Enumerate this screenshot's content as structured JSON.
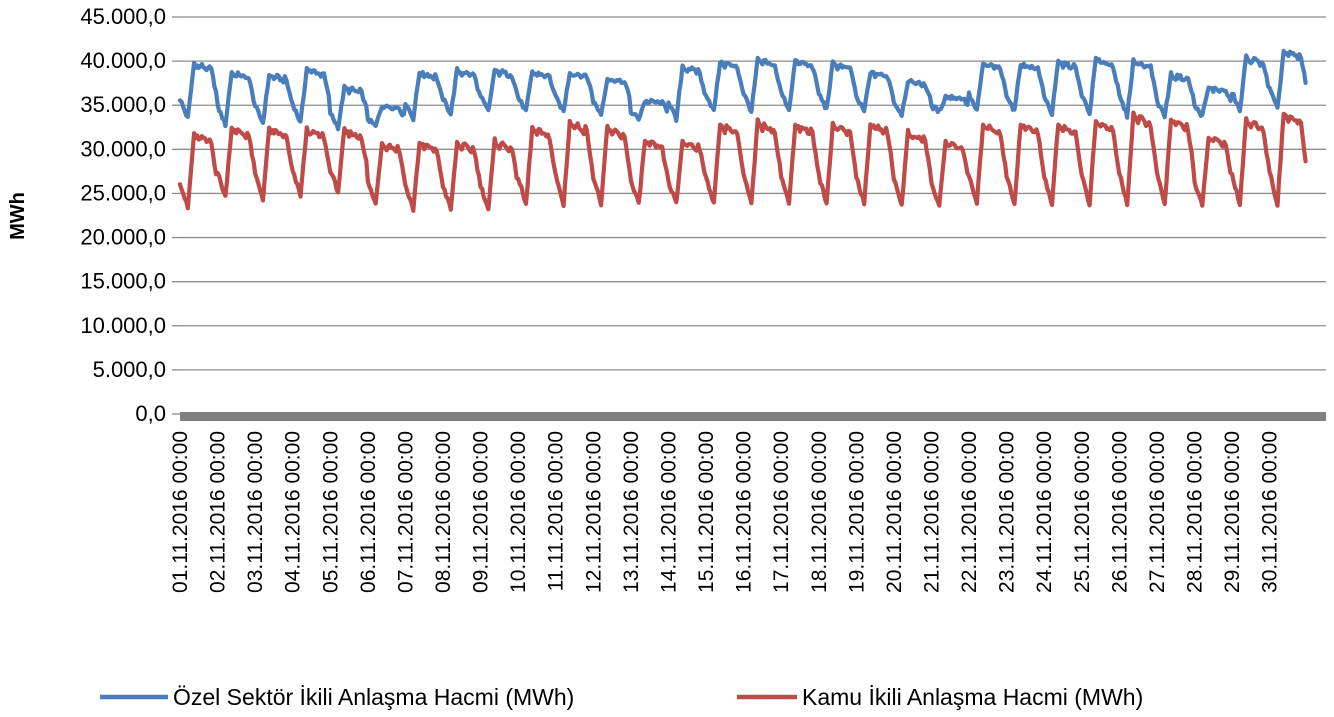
{
  "chart_data": {
    "type": "line",
    "title": "",
    "xlabel": "",
    "ylabel": "MWh",
    "ylim": [
      0,
      45000
    ],
    "yticks": [
      "0,0",
      "5.000,0",
      "10.000,0",
      "15.000,0",
      "20.000,0",
      "25.000,0",
      "30.000,0",
      "35.000,0",
      "40.000,0",
      "45.000,0"
    ],
    "x_tick_labels": [
      "01.11.2016 00:00",
      "02.11.2016 00:00",
      "03.11.2016 00:00",
      "04.11.2016 00:00",
      "05.11.2016 00:00",
      "06.11.2016 00:00",
      "07.11.2016 00:00",
      "08.11.2016 00:00",
      "09.11.2016 00:00",
      "10.11.2016 00:00",
      "11.11.2016 00:00",
      "12.11.2016 00:00",
      "13.11.2016 00:00",
      "14.11.2016 00:00",
      "15.11.2016 00:00",
      "16.11.2016 00:00",
      "17.11.2016 00:00",
      "18.11.2016 00:00",
      "19.11.2016 00:00",
      "20.11.2016 00:00",
      "21.11.2016 00:00",
      "22.11.2016 00:00",
      "23.11.2016 00:00",
      "24.11.2016 00:00",
      "25.11.2016 00:00",
      "26.11.2016 00:00",
      "27.11.2016 00:00",
      "28.11.2016 00:00",
      "29.11.2016 00:00",
      "30.11.2016 00:00"
    ],
    "grid": true,
    "legend_position": "bottom",
    "sampling": "hourly",
    "series": [
      {
        "name": "Özel Sektör İkili Anlaşma Hacmi (MWh)",
        "color": "#4a7ebb",
        "daily_min": [
          33500,
          32800,
          33000,
          33000,
          32500,
          32600,
          33500,
          34000,
          34300,
          34300,
          34300,
          34000,
          33500,
          33300,
          34300,
          34300,
          34500,
          34500,
          34300,
          34000,
          34300,
          34300,
          34300,
          34000,
          34000,
          33800,
          33800,
          33800,
          34300,
          34500
        ],
        "daily_max": [
          39800,
          38800,
          38500,
          39200,
          37000,
          35000,
          38800,
          39000,
          39000,
          38800,
          38800,
          38100,
          35500,
          39500,
          40000,
          40200,
          40100,
          39800,
          38800,
          37800,
          36000,
          39800,
          39800,
          40000,
          40300,
          40100,
          38500,
          37000,
          40500,
          41200
        ]
      },
      {
        "name": "Kamu İkili Anlaşma Hacmi (MWh)",
        "color": "#be4b48",
        "daily_min": [
          23300,
          24600,
          24400,
          24800,
          25200,
          23800,
          23200,
          23200,
          23200,
          23700,
          23700,
          23800,
          23800,
          23800,
          23800,
          23800,
          23800,
          23800,
          23800,
          23800,
          23500,
          23800,
          23800,
          23800,
          23800,
          23800,
          23800,
          23500,
          23800,
          23800
        ],
        "daily_max": [
          31800,
          32500,
          32400,
          32300,
          32200,
          30800,
          30800,
          30800,
          31000,
          32500,
          33200,
          32500,
          31000,
          31000,
          33000,
          33200,
          33000,
          33000,
          33000,
          32000,
          31000,
          33000,
          33000,
          33000,
          33300,
          34000,
          33500,
          31500,
          33500,
          34200
        ]
      }
    ]
  }
}
